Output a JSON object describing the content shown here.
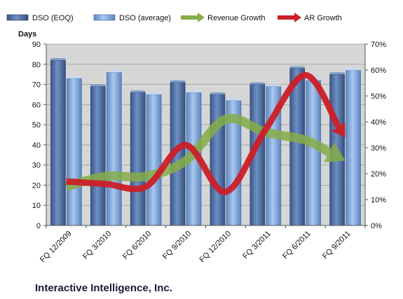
{
  "chart_data": {
    "type": "bar",
    "categories": [
      "FQ 12/2009",
      "FQ 3/2010",
      "FQ 6/2010",
      "FQ 9/2010",
      "FQ 12/2010",
      "FQ 3/2011",
      "FQ 6/2011",
      "FQ 9/2011"
    ],
    "series": [
      {
        "name": "DSO (EOQ)",
        "type": "bar",
        "axis": "left",
        "values": [
          82,
          69,
          66,
          71,
          65,
          70,
          78,
          75
        ]
      },
      {
        "name": "DSO (average)",
        "type": "bar",
        "axis": "left",
        "values": [
          73,
          76,
          65,
          66,
          62,
          69,
          72,
          77
        ]
      },
      {
        "name": "Revenue Growth",
        "type": "line-arrow",
        "axis": "right",
        "values": [
          0.15,
          0.19,
          0.19,
          0.25,
          0.41,
          0.36,
          0.33,
          0.25
        ]
      },
      {
        "name": "AR Growth",
        "type": "line-arrow",
        "axis": "right",
        "values": [
          0.17,
          0.16,
          0.15,
          0.31,
          0.13,
          0.37,
          0.58,
          0.34
        ]
      }
    ],
    "ylabel": "Days",
    "ylim": [
      0,
      90
    ],
    "yticks": [
      "0",
      "10",
      "20",
      "30",
      "40",
      "50",
      "60",
      "70",
      "80",
      "90"
    ],
    "y2lim": [
      0,
      0.7
    ],
    "y2ticks": [
      "0%",
      "10%",
      "20%",
      "30%",
      "40%",
      "50%",
      "60%",
      "70%"
    ],
    "legend_position": "top",
    "grid": true,
    "footer": "Interactive Intelligence, Inc.",
    "colors": {
      "dso_eoq": "#4f6fa6",
      "dso_avg": "#7ea7dc",
      "revenue_growth": "#86ad48",
      "ar_growth": "#cc1f28",
      "plot_bg": "#d6d6d6",
      "grid": "#a8a8a8"
    }
  }
}
